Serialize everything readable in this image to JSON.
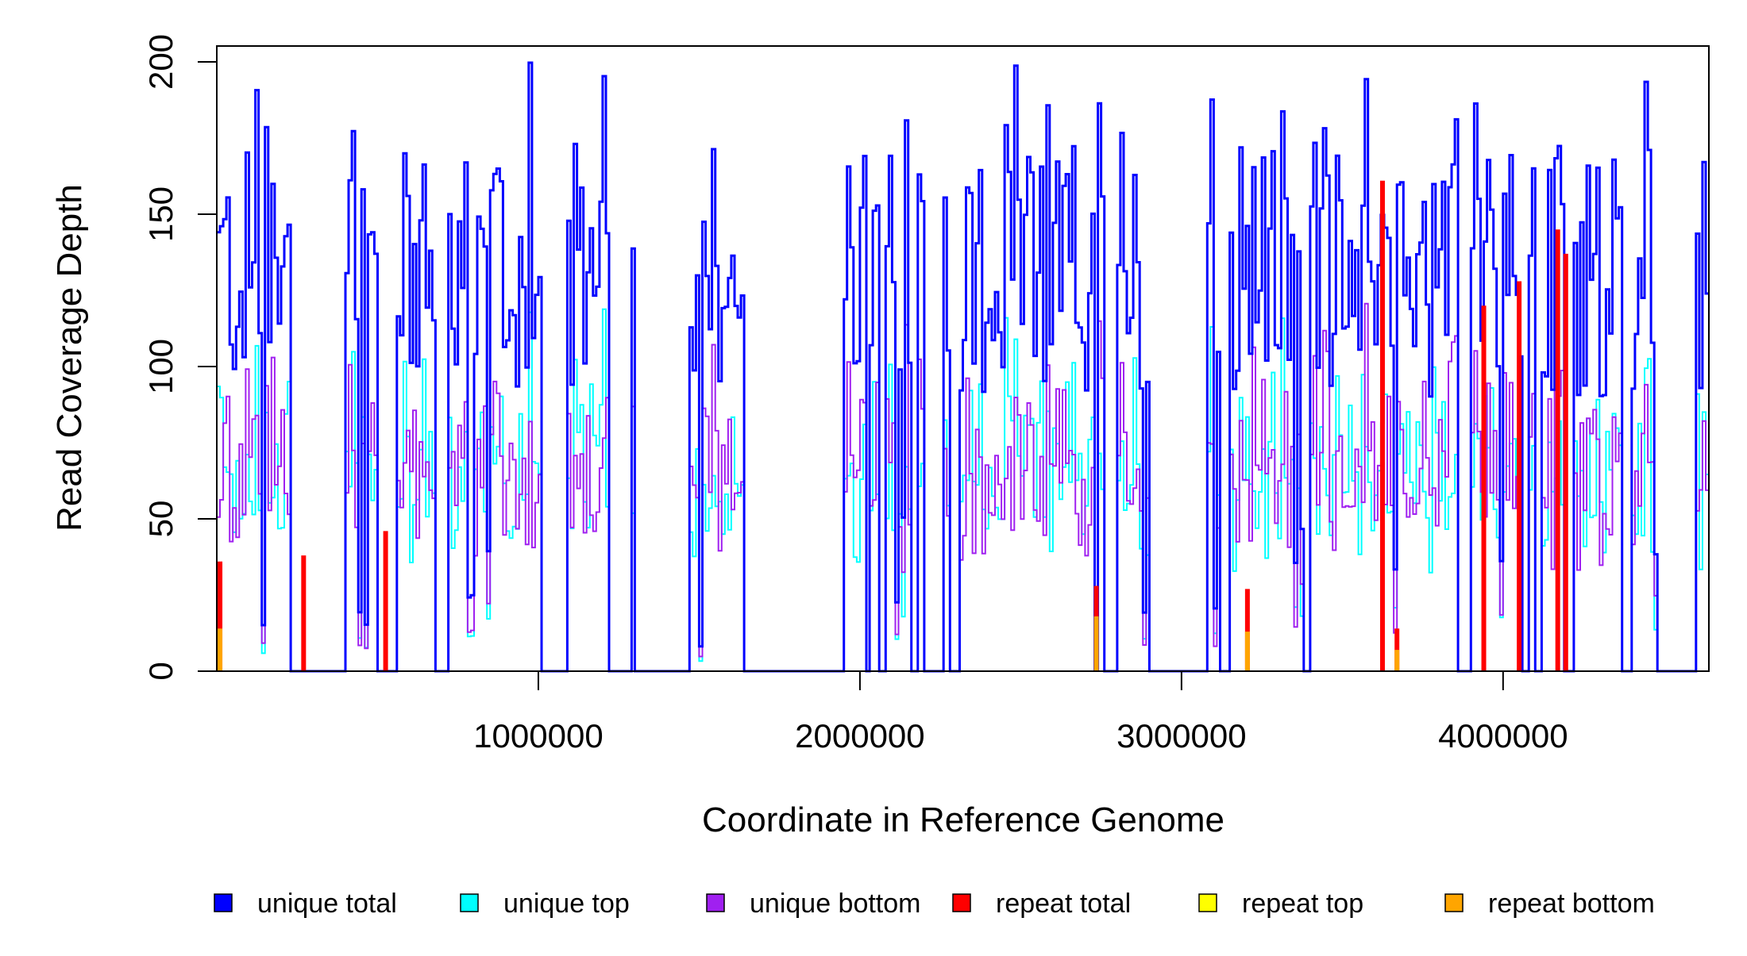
{
  "chart_data": {
    "type": "line",
    "title": "",
    "xlabel": "Coordinate in Reference Genome",
    "ylabel": "Read Coverage Depth",
    "xlim": [
      0,
      4640000
    ],
    "ylim": [
      0,
      200
    ],
    "x_ticks": [
      1000000,
      2000000,
      3000000,
      4000000
    ],
    "x_tick_labels": [
      "1000000",
      "2000000",
      "3000000",
      "4000000"
    ],
    "y_ticks": [
      0,
      50,
      100,
      150,
      200
    ],
    "y_tick_labels": [
      "0",
      "50",
      "100",
      "150",
      "200"
    ],
    "grid": false,
    "legend_position": "bottom",
    "bin_width": 10000,
    "series": [
      {
        "name": "unique total",
        "color": "#0000FF"
      },
      {
        "name": "unique top",
        "color": "#00FFFF"
      },
      {
        "name": "unique bottom",
        "color": "#A020F0"
      },
      {
        "name": "repeat total",
        "color": "#FF0000"
      },
      {
        "name": "repeat top",
        "color": "#FFFF00"
      },
      {
        "name": "repeat bottom",
        "color": "#FFA500"
      }
    ],
    "unique_total_profile": {
      "typical_range": [
        90,
        200
      ],
      "zero_coverage_intervals": [
        [
          230000,
          400000
        ],
        [
          500000,
          560000
        ],
        [
          680000,
          720000
        ],
        [
          1010000,
          1090000
        ],
        [
          1220000,
          1290000
        ],
        [
          1300000,
          1470000
        ],
        [
          1640000,
          1650000
        ],
        [
          1650000,
          1950000
        ],
        [
          2020000,
          2030000
        ],
        [
          2060000,
          2080000
        ],
        [
          2160000,
          2180000
        ],
        [
          2200000,
          2260000
        ],
        [
          2280000,
          2310000
        ],
        [
          2760000,
          2800000
        ],
        [
          2900000,
          3080000
        ],
        [
          3120000,
          3150000
        ],
        [
          3380000,
          3400000
        ],
        [
          3860000,
          3900000
        ],
        [
          4060000,
          4080000
        ],
        [
          4100000,
          4120000
        ],
        [
          4190000,
          4220000
        ],
        [
          4370000,
          4400000
        ],
        [
          4480000,
          4600000
        ]
      ]
    },
    "repeat_total_peaks": [
      {
        "x": 10000,
        "y": 36
      },
      {
        "x": 270000,
        "y": 38
      },
      {
        "x": 525000,
        "y": 46
      },
      {
        "x": 2735000,
        "y": 28
      },
      {
        "x": 3205000,
        "y": 27
      },
      {
        "x": 3625000,
        "y": 161
      },
      {
        "x": 3670000,
        "y": 14
      },
      {
        "x": 3940000,
        "y": 120
      },
      {
        "x": 4050000,
        "y": 128
      },
      {
        "x": 4170000,
        "y": 145
      },
      {
        "x": 4195000,
        "y": 137
      }
    ],
    "repeat_bottom_peaks": [
      {
        "x": 10000,
        "y": 14
      },
      {
        "x": 2735000,
        "y": 18
      },
      {
        "x": 3205000,
        "y": 13
      },
      {
        "x": 3670000,
        "y": 7
      }
    ]
  }
}
